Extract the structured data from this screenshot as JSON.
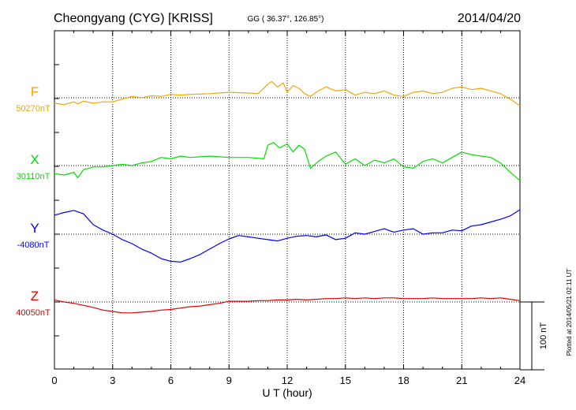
{
  "chart_data": {
    "type": "line",
    "title_left": "Cheongyang (CYG)  [KRISS]",
    "title_center": "GG ( 36.37°, 126.85°)",
    "title_right": "2014/04/20",
    "xlabel": "U T (hour)",
    "xlim": [
      0,
      24
    ],
    "xticks": [
      0,
      3,
      6,
      9,
      12,
      15,
      18,
      21,
      24
    ],
    "x_tick_labels": [
      "0",
      "3",
      "6",
      "9",
      "12",
      "15",
      "18",
      "21",
      "24"
    ],
    "grid": true,
    "scale_bar_label": "100 nT",
    "scale_bar_nT": 100,
    "plot_stamp": "Plotted at 2014/05/21 02:11 UT",
    "series": [
      {
        "name": "F",
        "baseline": "50270nT",
        "color": "#f0a800",
        "x": [
          0,
          0.5,
          1.0,
          1.2,
          1.5,
          2.0,
          2.5,
          3.0,
          3.5,
          4.0,
          4.5,
          5.0,
          5.5,
          6.0,
          6.5,
          7.0,
          8.0,
          9.0,
          10.0,
          10.5,
          11.0,
          11.2,
          11.5,
          11.8,
          12.0,
          12.3,
          12.6,
          12.9,
          13.2,
          13.6,
          14.0,
          14.5,
          15.0,
          15.5,
          16.0,
          16.5,
          17.0,
          17.5,
          18.0,
          18.5,
          19.0,
          19.5,
          20.0,
          20.5,
          21.0,
          21.5,
          22.0,
          22.5,
          23.0,
          23.5,
          24.0
        ],
        "y": [
          -8,
          -10,
          -6,
          -9,
          -5,
          -8,
          -6,
          -6,
          -2,
          2,
          0,
          3,
          2,
          5,
          4,
          5,
          6,
          8,
          7,
          6,
          20,
          24,
          16,
          22,
          8,
          18,
          14,
          6,
          2,
          10,
          16,
          10,
          12,
          4,
          8,
          6,
          10,
          4,
          2,
          8,
          10,
          6,
          8,
          14,
          16,
          12,
          14,
          10,
          6,
          -2,
          -12
        ]
      },
      {
        "name": "X",
        "baseline": "30110nT",
        "color": "#00e000",
        "x": [
          0,
          0.5,
          1.0,
          1.2,
          1.5,
          2.0,
          2.5,
          3.0,
          3.5,
          4.0,
          4.5,
          5.0,
          5.5,
          6.0,
          6.5,
          7.0,
          8.0,
          9.0,
          10.0,
          10.8,
          11.0,
          11.3,
          11.6,
          12.0,
          12.3,
          12.6,
          12.9,
          13.2,
          13.6,
          14.0,
          14.5,
          15.0,
          15.5,
          16.0,
          16.5,
          17.0,
          17.5,
          18.0,
          18.5,
          19.0,
          19.5,
          20.0,
          20.5,
          21.0,
          21.5,
          22.0,
          22.5,
          23.0,
          23.5,
          24.0
        ],
        "y": [
          -12,
          -14,
          -10,
          -18,
          -6,
          -2,
          -2,
          0,
          2,
          0,
          4,
          6,
          12,
          10,
          14,
          12,
          14,
          12,
          12,
          10,
          30,
          34,
          26,
          32,
          20,
          30,
          24,
          -4,
          6,
          14,
          20,
          2,
          10,
          0,
          8,
          4,
          10,
          -2,
          -4,
          6,
          10,
          4,
          12,
          20,
          16,
          14,
          12,
          4,
          -10,
          -22
        ]
      },
      {
        "name": "Y",
        "baseline": "-4080nT",
        "color": "#0000ff",
        "x": [
          0,
          0.5,
          1.0,
          1.5,
          2.0,
          2.5,
          3.0,
          3.5,
          4.0,
          4.5,
          5.0,
          5.5,
          6.0,
          6.5,
          7.0,
          7.5,
          8.0,
          8.5,
          9.0,
          9.5,
          10.0,
          10.5,
          11.0,
          11.5,
          12.0,
          12.5,
          13.0,
          13.5,
          14.0,
          14.5,
          15.0,
          15.5,
          16.0,
          16.5,
          17.0,
          17.5,
          18.0,
          18.5,
          19.0,
          19.5,
          20.0,
          20.5,
          21.0,
          21.5,
          22.0,
          22.5,
          23.0,
          23.5,
          24.0
        ],
        "y": [
          28,
          32,
          35,
          30,
          14,
          6,
          0,
          -8,
          -14,
          -22,
          -28,
          -36,
          -40,
          -41,
          -36,
          -30,
          -22,
          -14,
          -7,
          -2,
          -4,
          -6,
          -8,
          -10,
          -6,
          -3,
          -2,
          -4,
          -1,
          -8,
          -6,
          2,
          0,
          4,
          8,
          3,
          6,
          8,
          0,
          2,
          2,
          6,
          5,
          12,
          14,
          18,
          22,
          27,
          36
        ]
      },
      {
        "name": "Z",
        "baseline": "40050nT",
        "color": "#dd0000",
        "x": [
          0,
          0.5,
          1.0,
          1.5,
          2.0,
          2.5,
          3.0,
          3.5,
          4.0,
          4.5,
          5.0,
          5.5,
          6.0,
          6.5,
          7.0,
          7.5,
          8.0,
          8.5,
          9.0,
          9.5,
          10.0,
          10.5,
          11.0,
          11.5,
          12.0,
          12.5,
          13.0,
          13.5,
          14.0,
          14.5,
          15.0,
          15.5,
          16.0,
          16.5,
          17.0,
          17.5,
          18.0,
          18.5,
          19.0,
          19.5,
          20.0,
          20.5,
          21.0,
          21.5,
          22.0,
          22.5,
          23.0,
          23.5,
          24.0
        ],
        "y": [
          3,
          0,
          -2,
          -5,
          -8,
          -12,
          -14,
          -16,
          -16,
          -15,
          -14,
          -12,
          -11,
          -9,
          -7,
          -6,
          -4,
          -2,
          1,
          1,
          1,
          2,
          2,
          3,
          3,
          4,
          3,
          4,
          5,
          5,
          6,
          5,
          6,
          5,
          6,
          6,
          5,
          5,
          5,
          6,
          5,
          5,
          5,
          5,
          6,
          5,
          6,
          4,
          2
        ]
      }
    ]
  }
}
